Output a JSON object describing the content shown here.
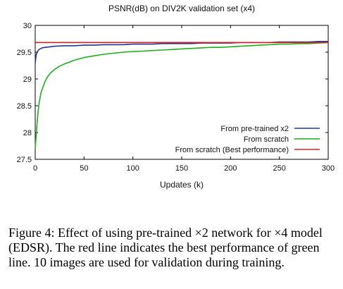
{
  "chart_data": {
    "type": "line",
    "title": "PSNR(dB) on DIV2K validation set (x4)",
    "xlabel": "Updates (k)",
    "ylabel": "",
    "xlim": [
      0,
      300
    ],
    "ylim": [
      27.5,
      30
    ],
    "xticks": [
      "0",
      "50",
      "100",
      "150",
      "200",
      "250",
      "300"
    ],
    "yticks": [
      "27.5",
      "28",
      "28.5",
      "29",
      "29.5",
      "30"
    ],
    "grid": false,
    "legend_position": "bottom-right",
    "series": [
      {
        "name": "From pre-trained x2",
        "color": "#1f3a8f",
        "x": [
          0,
          1,
          2,
          3,
          4,
          5,
          7,
          10,
          15,
          20,
          30,
          40,
          50,
          60,
          70,
          80,
          90,
          100,
          110,
          120,
          130,
          140,
          150,
          160,
          170,
          180,
          190,
          200,
          210,
          220,
          230,
          240,
          250,
          260,
          270,
          280,
          290,
          300
        ],
        "y": [
          29.3,
          29.45,
          29.5,
          29.53,
          29.55,
          29.56,
          29.58,
          29.59,
          29.6,
          29.61,
          29.62,
          29.62,
          29.63,
          29.63,
          29.64,
          29.64,
          29.64,
          29.65,
          29.65,
          29.65,
          29.66,
          29.66,
          29.66,
          29.66,
          29.67,
          29.67,
          29.67,
          29.67,
          29.68,
          29.68,
          29.68,
          29.68,
          29.69,
          29.69,
          29.69,
          29.69,
          29.7,
          29.7
        ]
      },
      {
        "name": "From scratch",
        "color": "#1fae1f",
        "x": [
          0,
          1,
          2,
          3,
          4,
          5,
          6,
          8,
          10,
          12,
          15,
          20,
          25,
          30,
          40,
          50,
          60,
          70,
          80,
          90,
          100,
          110,
          120,
          130,
          140,
          150,
          160,
          170,
          180,
          190,
          200,
          210,
          220,
          230,
          240,
          250,
          260,
          270,
          280,
          290,
          300
        ],
        "y": [
          27.7,
          27.95,
          28.2,
          28.4,
          28.55,
          28.65,
          28.75,
          28.85,
          28.95,
          29.02,
          29.1,
          29.18,
          29.24,
          29.28,
          29.35,
          29.4,
          29.43,
          29.46,
          29.48,
          29.5,
          29.51,
          29.52,
          29.53,
          29.54,
          29.55,
          29.56,
          29.57,
          29.58,
          29.59,
          29.59,
          29.6,
          29.61,
          29.62,
          29.63,
          29.64,
          29.65,
          29.65,
          29.66,
          29.66,
          29.67,
          29.68
        ]
      },
      {
        "name": "From scratch (Best performance)",
        "color": "#e02020",
        "x": [
          0,
          300
        ],
        "y": [
          29.68,
          29.68
        ]
      }
    ]
  },
  "caption": "Figure 4: Effect of using pre-trained ×2 network for ×4 model (EDSR). The red line indicates the best performance of green line. 10 images are used for validation during training."
}
